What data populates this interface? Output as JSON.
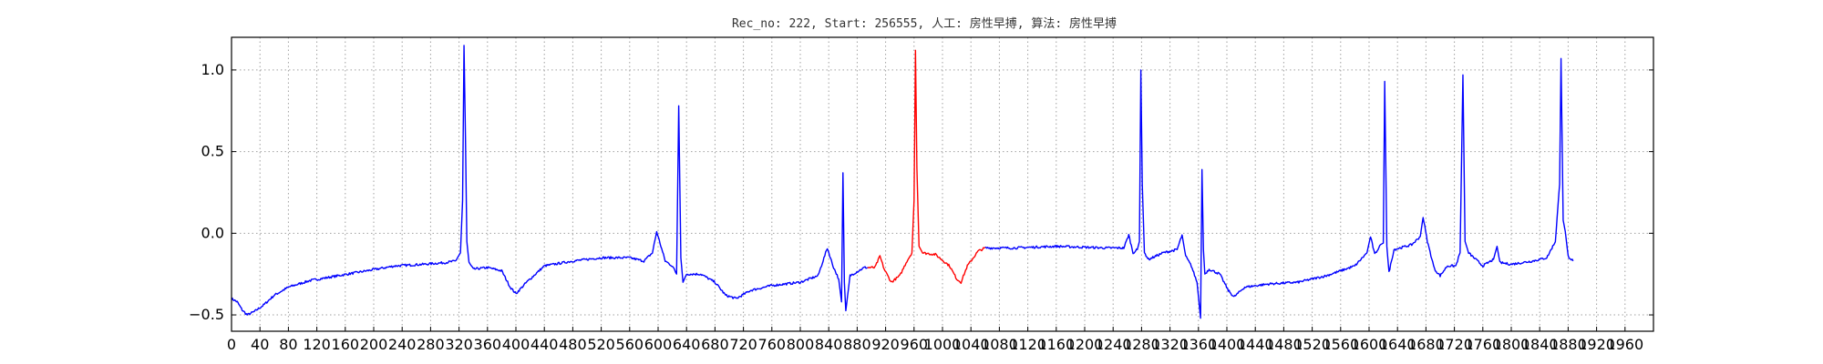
{
  "chart_data": {
    "type": "line",
    "title": "Rec_no: 222, Start: 256555, 人工: 房性早搏, 算法: 房性早搏",
    "xlabel": "",
    "ylabel": "",
    "xlim": [
      0,
      2000
    ],
    "ylim": [
      -0.6,
      1.2
    ],
    "y_ticks": [
      -0.5,
      0.0,
      0.5,
      1.0
    ],
    "y_tick_labels": [
      "−0.5",
      "0.0",
      "0.5",
      "1.0"
    ],
    "x_ticks": [
      0,
      40,
      80,
      120,
      160,
      200,
      240,
      280,
      320,
      360,
      400,
      440,
      480,
      520,
      560,
      600,
      640,
      680,
      720,
      760,
      800,
      840,
      880,
      920,
      960,
      1000,
      1040,
      1080,
      1120,
      1160,
      1200,
      1240,
      1280,
      1320,
      1360,
      1400,
      1440,
      1480,
      1520,
      1560,
      1600,
      1640,
      1680,
      1720,
      1760,
      1800,
      1840,
      1880,
      1920,
      1960
    ],
    "grid": true,
    "series_colors": {
      "normal": "#0000ff",
      "highlight": "#ff0000"
    },
    "highlight_range": [
      895,
      1060
    ],
    "keypoints": [
      [
        0,
        -0.4
      ],
      [
        8,
        -0.42
      ],
      [
        15,
        -0.47
      ],
      [
        22,
        -0.5
      ],
      [
        32,
        -0.48
      ],
      [
        45,
        -0.44
      ],
      [
        60,
        -0.38
      ],
      [
        80,
        -0.33
      ],
      [
        110,
        -0.29
      ],
      [
        150,
        -0.26
      ],
      [
        190,
        -0.23
      ],
      [
        230,
        -0.2
      ],
      [
        270,
        -0.19
      ],
      [
        300,
        -0.18
      ],
      [
        315,
        -0.17
      ],
      [
        322,
        -0.12
      ],
      [
        325,
        0.2
      ],
      [
        327,
        1.15
      ],
      [
        329,
        0.6
      ],
      [
        331,
        -0.05
      ],
      [
        334,
        -0.18
      ],
      [
        340,
        -0.22
      ],
      [
        360,
        -0.21
      ],
      [
        380,
        -0.23
      ],
      [
        392,
        -0.33
      ],
      [
        400,
        -0.37
      ],
      [
        415,
        -0.3
      ],
      [
        440,
        -0.2
      ],
      [
        480,
        -0.17
      ],
      [
        520,
        -0.15
      ],
      [
        560,
        -0.15
      ],
      [
        580,
        -0.17
      ],
      [
        592,
        -0.12
      ],
      [
        598,
        0.01
      ],
      [
        604,
        -0.08
      ],
      [
        610,
        -0.17
      ],
      [
        620,
        -0.2
      ],
      [
        626,
        -0.25
      ],
      [
        629,
        0.78
      ],
      [
        632,
        -0.15
      ],
      [
        635,
        -0.3
      ],
      [
        640,
        -0.25
      ],
      [
        660,
        -0.25
      ],
      [
        680,
        -0.3
      ],
      [
        695,
        -0.38
      ],
      [
        710,
        -0.4
      ],
      [
        730,
        -0.35
      ],
      [
        760,
        -0.32
      ],
      [
        800,
        -0.3
      ],
      [
        825,
        -0.26
      ],
      [
        838,
        -0.09
      ],
      [
        846,
        -0.2
      ],
      [
        854,
        -0.28
      ],
      [
        858,
        -0.42
      ],
      [
        860,
        0.37
      ],
      [
        862,
        -0.3
      ],
      [
        864,
        -0.48
      ],
      [
        870,
        -0.26
      ],
      [
        890,
        -0.21
      ],
      [
        905,
        -0.21
      ],
      [
        912,
        -0.14
      ],
      [
        918,
        -0.22
      ],
      [
        928,
        -0.3
      ],
      [
        940,
        -0.26
      ],
      [
        950,
        -0.17
      ],
      [
        957,
        -0.12
      ],
      [
        960,
        0.2
      ],
      [
        962,
        1.12
      ],
      [
        964,
        0.4
      ],
      [
        967,
        -0.08
      ],
      [
        972,
        -0.12
      ],
      [
        990,
        -0.13
      ],
      [
        1010,
        -0.2
      ],
      [
        1020,
        -0.28
      ],
      [
        1026,
        -0.3
      ],
      [
        1035,
        -0.2
      ],
      [
        1050,
        -0.11
      ],
      [
        1060,
        -0.09
      ],
      [
        1100,
        -0.09
      ],
      [
        1160,
        -0.08
      ],
      [
        1230,
        -0.09
      ],
      [
        1255,
        -0.09
      ],
      [
        1262,
        -0.01
      ],
      [
        1268,
        -0.12
      ],
      [
        1274,
        -0.1
      ],
      [
        1277,
        -0.05
      ],
      [
        1279,
        1.0
      ],
      [
        1281,
        0.3
      ],
      [
        1284,
        -0.12
      ],
      [
        1290,
        -0.16
      ],
      [
        1310,
        -0.12
      ],
      [
        1330,
        -0.1
      ],
      [
        1337,
        -0.01
      ],
      [
        1342,
        -0.14
      ],
      [
        1350,
        -0.2
      ],
      [
        1358,
        -0.3
      ],
      [
        1363,
        -0.52
      ],
      [
        1365,
        0.39
      ],
      [
        1367,
        -0.1
      ],
      [
        1369,
        -0.25
      ],
      [
        1375,
        -0.22
      ],
      [
        1390,
        -0.25
      ],
      [
        1402,
        -0.35
      ],
      [
        1410,
        -0.39
      ],
      [
        1425,
        -0.33
      ],
      [
        1460,
        -0.31
      ],
      [
        1500,
        -0.3
      ],
      [
        1540,
        -0.26
      ],
      [
        1580,
        -0.2
      ],
      [
        1597,
        -0.12
      ],
      [
        1602,
        -0.02
      ],
      [
        1608,
        -0.13
      ],
      [
        1616,
        -0.07
      ],
      [
        1620,
        -0.06
      ],
      [
        1622,
        0.93
      ],
      [
        1625,
        -0.08
      ],
      [
        1628,
        -0.24
      ],
      [
        1635,
        -0.1
      ],
      [
        1660,
        -0.07
      ],
      [
        1672,
        -0.02
      ],
      [
        1676,
        0.1
      ],
      [
        1682,
        -0.05
      ],
      [
        1692,
        -0.22
      ],
      [
        1700,
        -0.26
      ],
      [
        1710,
        -0.2
      ],
      [
        1722,
        -0.2
      ],
      [
        1728,
        -0.12
      ],
      [
        1732,
        0.97
      ],
      [
        1735,
        -0.05
      ],
      [
        1740,
        -0.12
      ],
      [
        1760,
        -0.2
      ],
      [
        1775,
        -0.16
      ],
      [
        1780,
        -0.08
      ],
      [
        1784,
        -0.18
      ],
      [
        1800,
        -0.19
      ],
      [
        1830,
        -0.17
      ],
      [
        1850,
        -0.15
      ],
      [
        1862,
        -0.05
      ],
      [
        1868,
        0.3
      ],
      [
        1870,
        1.07
      ],
      [
        1873,
        0.08
      ],
      [
        1876,
        0.01
      ],
      [
        1880,
        -0.14
      ],
      [
        1887,
        -0.17
      ]
    ]
  }
}
